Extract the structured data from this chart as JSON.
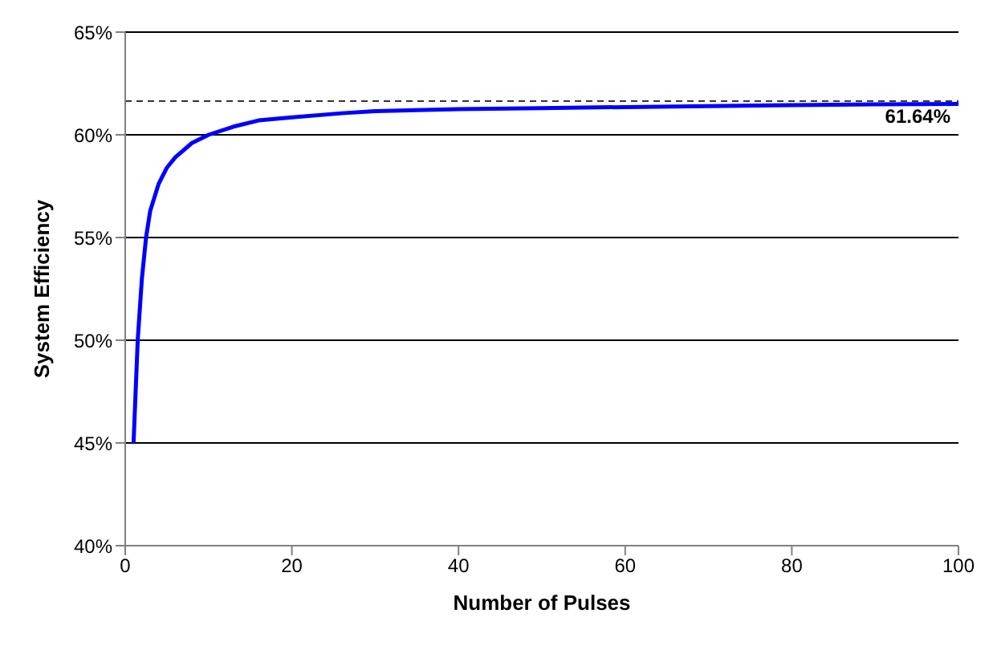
{
  "chart_data": {
    "type": "line",
    "xlabel": "Number of Pulses",
    "ylabel": "System Efficiency",
    "x": [
      1,
      1.5,
      2,
      2.5,
      3,
      4,
      5,
      6,
      8,
      10,
      13,
      16,
      20,
      26,
      30,
      40,
      50,
      60,
      70,
      80,
      90,
      100
    ],
    "series": [
      {
        "color": "#0000ff",
        "values": [
          45,
          50,
          53,
          55,
          56.3,
          57.6,
          58.4,
          58.9,
          59.6,
          60.0,
          60.4,
          60.7,
          60.85,
          61.05,
          61.15,
          61.25,
          61.3,
          61.35,
          61.4,
          61.45,
          61.48,
          61.5
        ]
      }
    ],
    "xlim": [
      0,
      100
    ],
    "xticks": [
      0,
      20,
      40,
      60,
      80,
      100
    ],
    "ylim": [
      40,
      65
    ],
    "yticks": [
      {
        "value": 40,
        "label": "40%"
      },
      {
        "value": 45,
        "label": "45%"
      },
      {
        "value": 50,
        "label": "50%"
      },
      {
        "value": 55,
        "label": "55%"
      },
      {
        "value": 60,
        "label": "60%"
      },
      {
        "value": 65,
        "label": "65%"
      }
    ],
    "ref_lines": [
      {
        "axis": "y",
        "value": 61.64,
        "label": "61.64%",
        "color": "#333333",
        "line_style": "dashed"
      }
    ],
    "grid": "y",
    "marker": "none",
    "line_style": "solid",
    "legend": false
  }
}
